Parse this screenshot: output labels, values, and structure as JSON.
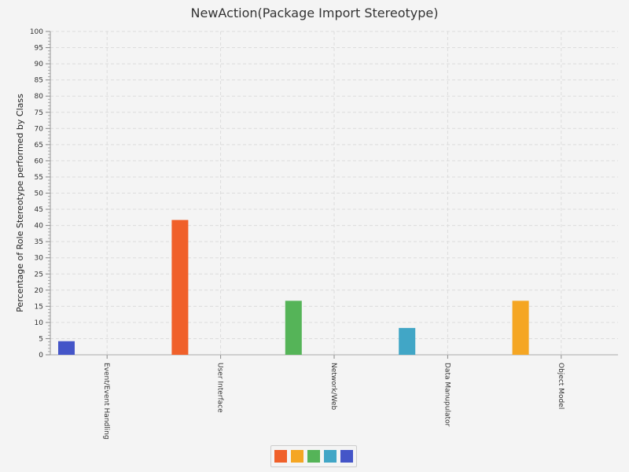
{
  "chart_data": {
    "type": "bar",
    "title": "NewAction(Package Import Stereotype)",
    "ylabel": "Percentage of Role Stereotype performed by Class",
    "xlabel": "",
    "ylim": [
      0,
      100
    ],
    "yticks": [
      0,
      5,
      10,
      15,
      20,
      25,
      30,
      35,
      40,
      45,
      50,
      55,
      60,
      65,
      70,
      75,
      80,
      85,
      90,
      95,
      100
    ],
    "grid": true,
    "categories": [
      "Event/Event Handling",
      "User Interface",
      "Network/Web",
      "Data Manupulator",
      "Object Model"
    ],
    "values": [
      4.2,
      41.7,
      16.7,
      8.3,
      16.7
    ],
    "colors": [
      "#4455c8",
      "#f0602a",
      "#55b458",
      "#41a6c6",
      "#f5a623"
    ],
    "legend": {
      "placement": "bottom-center",
      "colors": [
        "#f0602a",
        "#f5a623",
        "#55b458",
        "#41a6c6",
        "#4455c8"
      ]
    }
  }
}
